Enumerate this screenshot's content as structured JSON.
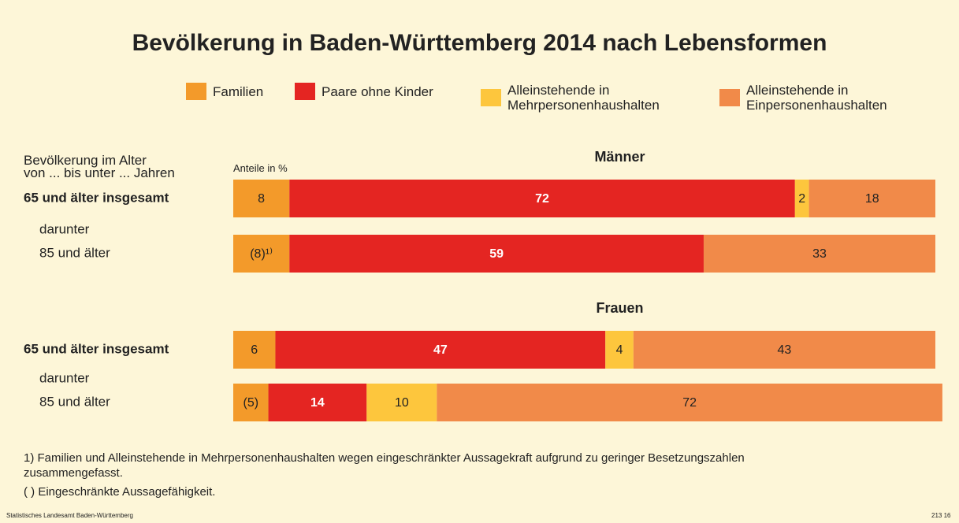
{
  "title": "Bevölkerung in Baden-Württemberg 2014 nach Lebensformen",
  "axis_label": "Bevölkerung im Alter\nvon ... bis unter ... Jahren",
  "unit_label": "Anteile in %",
  "footnotes": [
    "1) Familien und Alleinstehende in Mehrpersonenhaushalten wegen eingeschränkter Aussagekraft aufgrund zu geringer Besetzungszahlen\nzusammengefasst.",
    "( )  Eingeschränkte Aussagefähigkeit."
  ],
  "source": "Statistisches Landesamt Baden-Württemberg",
  "code": "213 16",
  "chart_data": [
    {
      "type": "stacked_bar_horizontal",
      "title": "Männer",
      "subgroup_label": "darunter",
      "categories": [
        "65 und älter insgesamt",
        "85 und älter"
      ],
      "xlim": [
        0,
        100
      ],
      "series": [
        {
          "name": "Familien",
          "color": "#f39a2a",
          "values": [
            8,
            8
          ],
          "value_labels": [
            "8",
            "(8)¹⁾"
          ]
        },
        {
          "name": "Paare ohne Kinder",
          "color": "#e42522",
          "values": [
            72,
            59
          ]
        },
        {
          "name": "Alleinstehende in\nMehrpersonenhaushalten",
          "color": "#fdc63d",
          "values": [
            2,
            null
          ]
        },
        {
          "name": "Alleinstehende in\nEinpersonenhaushalten",
          "color": "#f18a49",
          "values": [
            18,
            33
          ]
        }
      ]
    },
    {
      "type": "stacked_bar_horizontal",
      "title": "Frauen",
      "subgroup_label": "darunter",
      "categories": [
        "65 und älter insgesamt",
        "85 und älter"
      ],
      "xlim": [
        0,
        100
      ],
      "series": [
        {
          "name": "Familien",
          "color": "#f39a2a",
          "values": [
            6,
            5
          ],
          "value_labels": [
            "6",
            "(5)"
          ]
        },
        {
          "name": "Paare ohne Kinder",
          "color": "#e42522",
          "values": [
            47,
            14
          ]
        },
        {
          "name": "Alleinstehende in\nMehrpersonenhaushalten",
          "color": "#fdc63d",
          "values": [
            4,
            10
          ]
        },
        {
          "name": "Alleinstehende in\nEinpersonenhaushalten",
          "color": "#f18a49",
          "values": [
            43,
            72
          ]
        }
      ]
    }
  ]
}
